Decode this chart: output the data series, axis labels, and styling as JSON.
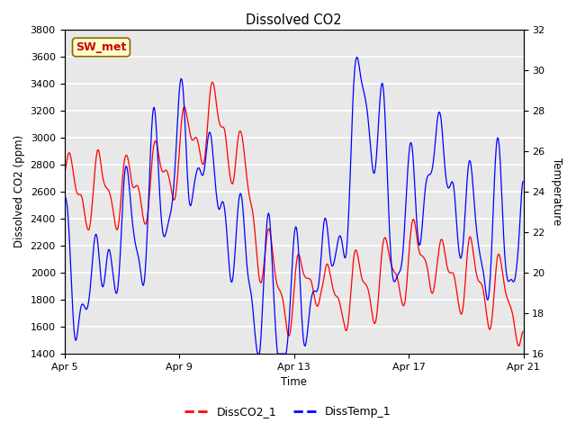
{
  "title": "Dissolved CO2",
  "xlabel": "Time",
  "ylabel_left": "Dissolved CO2 (ppm)",
  "ylabel_right": "Temperature",
  "ylim_left": [
    1400,
    3800
  ],
  "ylim_right": [
    16,
    32
  ],
  "yticks_left": [
    1400,
    1600,
    1800,
    2000,
    2200,
    2400,
    2600,
    2800,
    3000,
    3200,
    3400,
    3600,
    3800
  ],
  "yticks_right": [
    16,
    18,
    20,
    22,
    24,
    26,
    28,
    30,
    32
  ],
  "xtick_labels": [
    "Apr 5",
    "Apr 9",
    "Apr 13",
    "Apr 17",
    "Apr 21"
  ],
  "xtick_days": [
    5,
    9,
    13,
    17,
    21
  ],
  "legend_labels": [
    "DissCO2_1",
    "DissTemp_1"
  ],
  "line_color_co2": "red",
  "line_color_temp": "blue",
  "plot_bg_color": "#e8e8e8",
  "annotation_text": "SW_met",
  "annotation_box_color": "#ffffcc",
  "annotation_border_color": "#886600",
  "annotation_text_color": "#cc0000"
}
